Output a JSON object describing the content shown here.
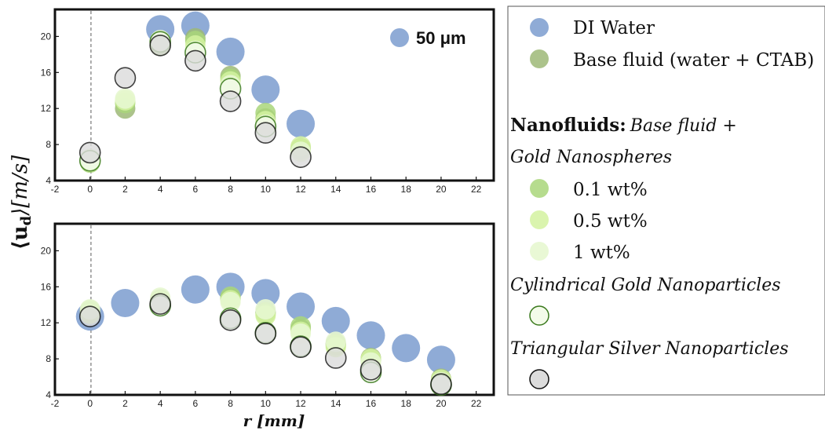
{
  "chart_data": [
    {
      "type": "scatter",
      "panel": "top",
      "xlim": [
        -2,
        23
      ],
      "ylim": [
        4,
        23
      ],
      "xticks": [
        -2,
        0,
        2,
        4,
        6,
        8,
        10,
        12,
        14,
        16,
        18,
        20,
        22
      ],
      "yticks": [
        4,
        8,
        12,
        16,
        20
      ],
      "annotation": "50 μm",
      "series": [
        {
          "key": "di",
          "x": [
            4,
            6,
            8,
            10,
            12
          ],
          "y": [
            20.8,
            21.2,
            18.3,
            14.1,
            10.3
          ]
        },
        {
          "key": "base",
          "x": [
            0,
            2,
            4,
            6,
            8,
            10,
            12
          ],
          "y": [
            6.3,
            12.0,
            19.0,
            19.8,
            15.6,
            10.9,
            7.6
          ]
        },
        {
          "key": "w01",
          "x": [
            0,
            2,
            4,
            6,
            8,
            10,
            12
          ],
          "y": [
            6.0,
            12.6,
            19.5,
            19.5,
            15.3,
            11.5,
            7.4
          ]
        },
        {
          "key": "w05",
          "x": [
            0,
            2,
            4,
            6,
            8,
            10,
            12
          ],
          "y": [
            6.1,
            12.9,
            19.3,
            19.0,
            15.0,
            10.6,
            7.8
          ]
        },
        {
          "key": "w1",
          "x": [
            0,
            2,
            4,
            6,
            8,
            10,
            12
          ],
          "y": [
            6.4,
            13.1,
            19.6,
            18.4,
            14.6,
            10.2,
            7.2
          ]
        },
        {
          "key": "cyl",
          "x": [
            0,
            4,
            6,
            8,
            10
          ],
          "y": [
            6.2,
            19.4,
            18.2,
            14.2,
            10.0
          ]
        },
        {
          "key": "tri",
          "x": [
            0,
            2,
            4,
            6,
            8,
            10,
            12
          ],
          "y": [
            7.1,
            15.4,
            19.0,
            17.3,
            12.8,
            9.3,
            6.6
          ]
        }
      ]
    },
    {
      "type": "scatter",
      "panel": "bottom",
      "xlim": [
        -2,
        23
      ],
      "ylim": [
        4,
        23
      ],
      "xticks": [
        -2,
        0,
        2,
        4,
        6,
        8,
        10,
        12,
        14,
        16,
        18,
        20,
        22
      ],
      "yticks": [
        4,
        8,
        12,
        16,
        20
      ],
      "series": [
        {
          "key": "di",
          "x": [
            0,
            2,
            6,
            8,
            10,
            12,
            14,
            16,
            18,
            20
          ],
          "y": [
            12.7,
            14.2,
            15.7,
            16.0,
            15.3,
            13.8,
            12.2,
            10.6,
            9.2,
            7.9
          ]
        },
        {
          "key": "base",
          "x": [
            0,
            4,
            8,
            10,
            12,
            14,
            16,
            20
          ],
          "y": [
            13.2,
            14.6,
            14.7,
            13.2,
            11.3,
            9.7,
            8.1,
            5.8
          ]
        },
        {
          "key": "w01",
          "x": [
            0,
            4,
            8,
            10,
            12,
            14,
            16,
            20
          ],
          "y": [
            13.4,
            14.4,
            14.9,
            13.0,
            11.6,
            9.5,
            7.8,
            5.5
          ]
        },
        {
          "key": "w05",
          "x": [
            0,
            4,
            8,
            10,
            12,
            14,
            16,
            20
          ],
          "y": [
            13.0,
            14.3,
            14.5,
            12.8,
            11.0,
            9.3,
            8.0,
            5.7
          ]
        },
        {
          "key": "w1",
          "x": [
            0,
            4,
            8,
            10,
            12,
            14,
            16,
            20
          ],
          "y": [
            13.5,
            14.8,
            14.3,
            13.5,
            10.8,
            9.9,
            7.6,
            5.4
          ]
        },
        {
          "key": "cyl",
          "x": [
            4,
            8,
            10,
            12,
            16,
            20
          ],
          "y": [
            13.9,
            12.5,
            10.9,
            9.4,
            6.5,
            5.1
          ]
        },
        {
          "key": "tri",
          "x": [
            0,
            4,
            8,
            10,
            12,
            14,
            16,
            20
          ],
          "y": [
            12.7,
            14.1,
            12.3,
            10.8,
            9.3,
            8.1,
            6.8,
            5.2
          ]
        }
      ]
    }
  ],
  "axes": {
    "ylabel": "⟨u_d⟩[m/s]",
    "ylabel_main": "⟨u",
    "ylabel_sub": "d",
    "ylabel_rest": "⟩[m/s]",
    "xlabel": "r [mm]"
  },
  "styles": {
    "di": {
      "fill": "#7b9ccf",
      "stroke": "none",
      "opacity": 0.85,
      "size": "large"
    },
    "base": {
      "fill": "#9db877",
      "stroke": "none",
      "opacity": 0.85,
      "size": "medium"
    },
    "w01": {
      "fill": "#a9d67a",
      "stroke": "none",
      "opacity": 0.85,
      "size": "medium"
    },
    "w05": {
      "fill": "#d4f2a0",
      "stroke": "none",
      "opacity": 0.85,
      "size": "medium"
    },
    "w1": {
      "fill": "#e7f7d0",
      "stroke": "none",
      "opacity": 0.9,
      "size": "medium"
    },
    "cyl": {
      "fill": "#f3fbe9",
      "stroke": "#3b7a1e",
      "opacity": 0.85,
      "size": "medium"
    },
    "tri": {
      "fill": "#dcdcdc",
      "stroke": "#111111",
      "opacity": 0.8,
      "size": "medium"
    }
  },
  "legend": {
    "entries": [
      {
        "key": "di",
        "label": "DI Water"
      },
      {
        "key": "base",
        "label": "Base fluid (water + CTAB)"
      }
    ],
    "nano_bold": "Nanofluids:",
    "nano_italic": "Base fluid +",
    "nano_line2": "Gold Nanospheres",
    "wt_entries": [
      {
        "key": "w01",
        "label": "0.1 wt%"
      },
      {
        "key": "w05",
        "label": "0.5 wt%"
      },
      {
        "key": "w1",
        "label": "1 wt%"
      }
    ],
    "cyl_label": "Cylindrical Gold Nanoparticles",
    "tri_label": "Triangular Silver Nanoparticles"
  }
}
